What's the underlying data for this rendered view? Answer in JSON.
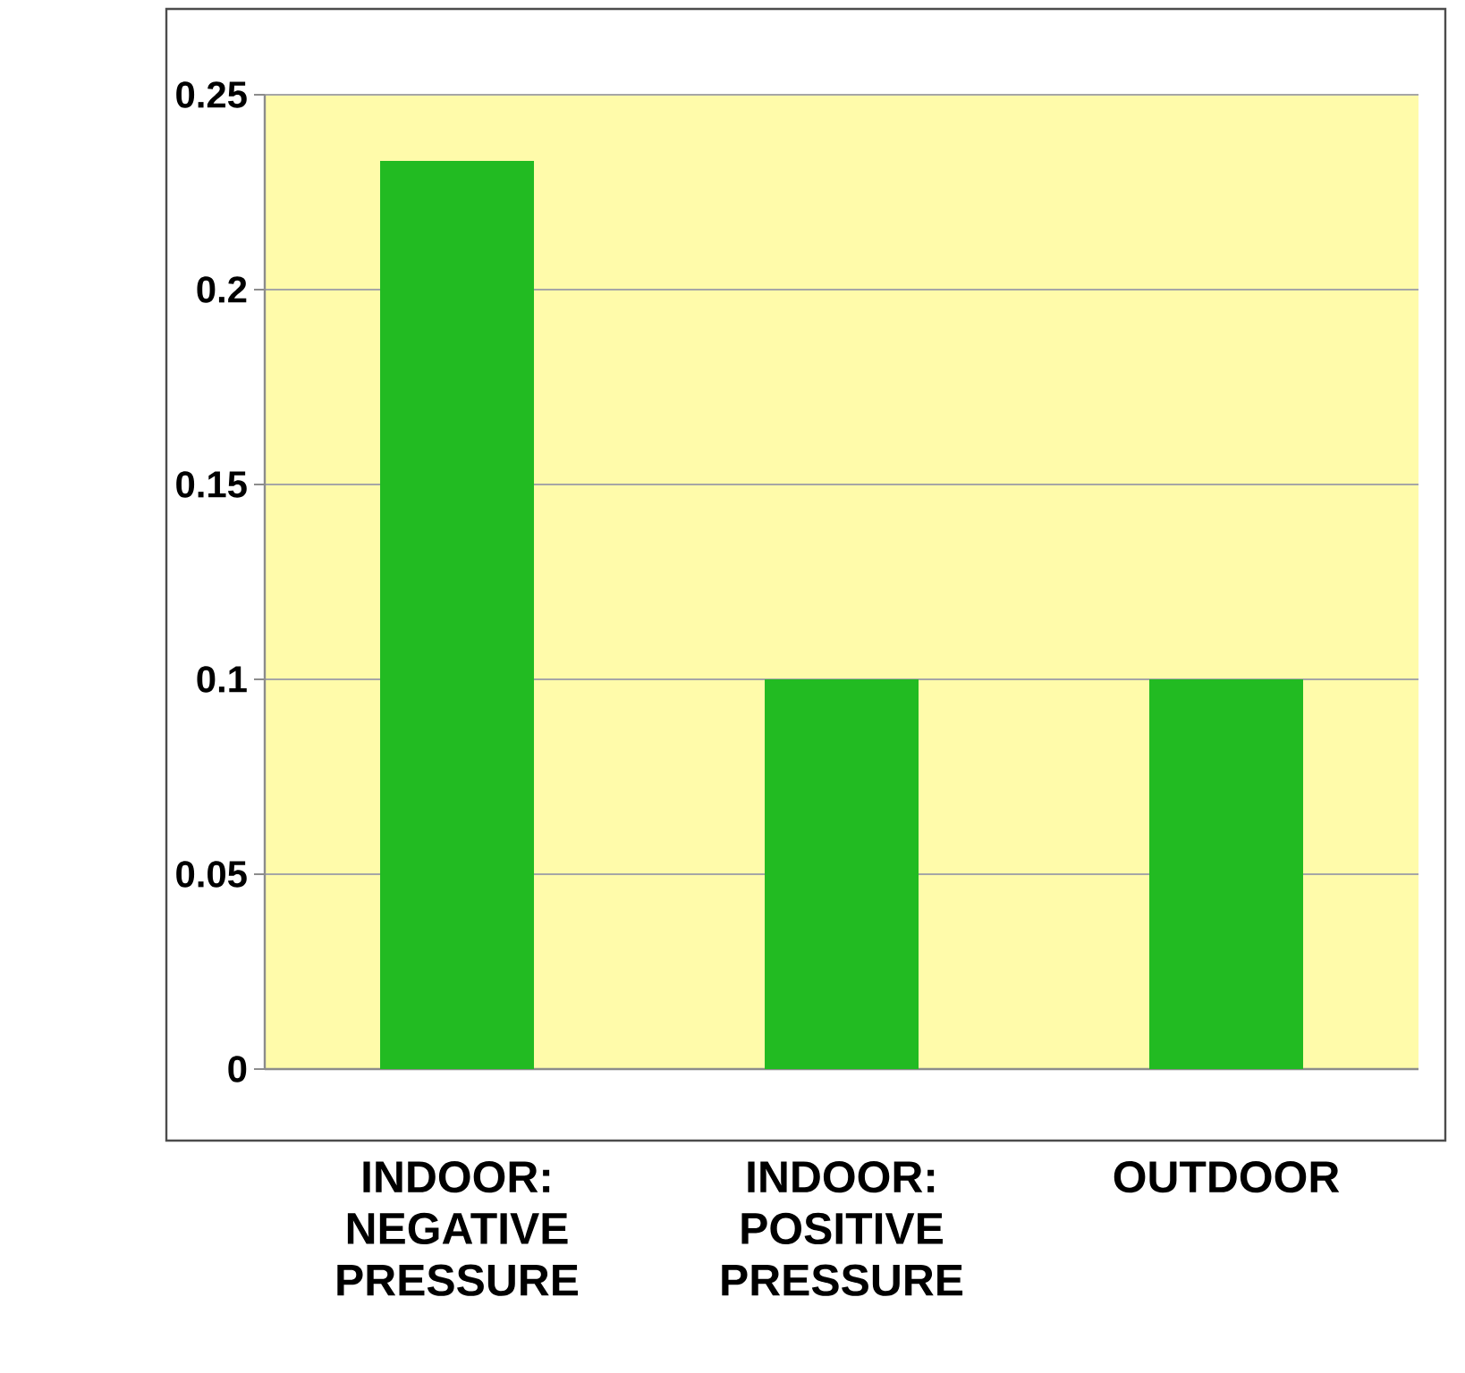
{
  "chart_data": {
    "type": "bar",
    "categories": [
      "INDOOR: NEGATIVE PRESSURE",
      "INDOOR: POSITIVE PRESSURE",
      "OUTDOOR"
    ],
    "values": [
      0.233,
      0.1,
      0.1
    ],
    "color": "#22bb22",
    "ylim": [
      0,
      0.25
    ],
    "yticks": [
      0,
      0.05,
      0.1,
      0.15,
      0.2,
      0.25
    ],
    "grid": "y"
  }
}
